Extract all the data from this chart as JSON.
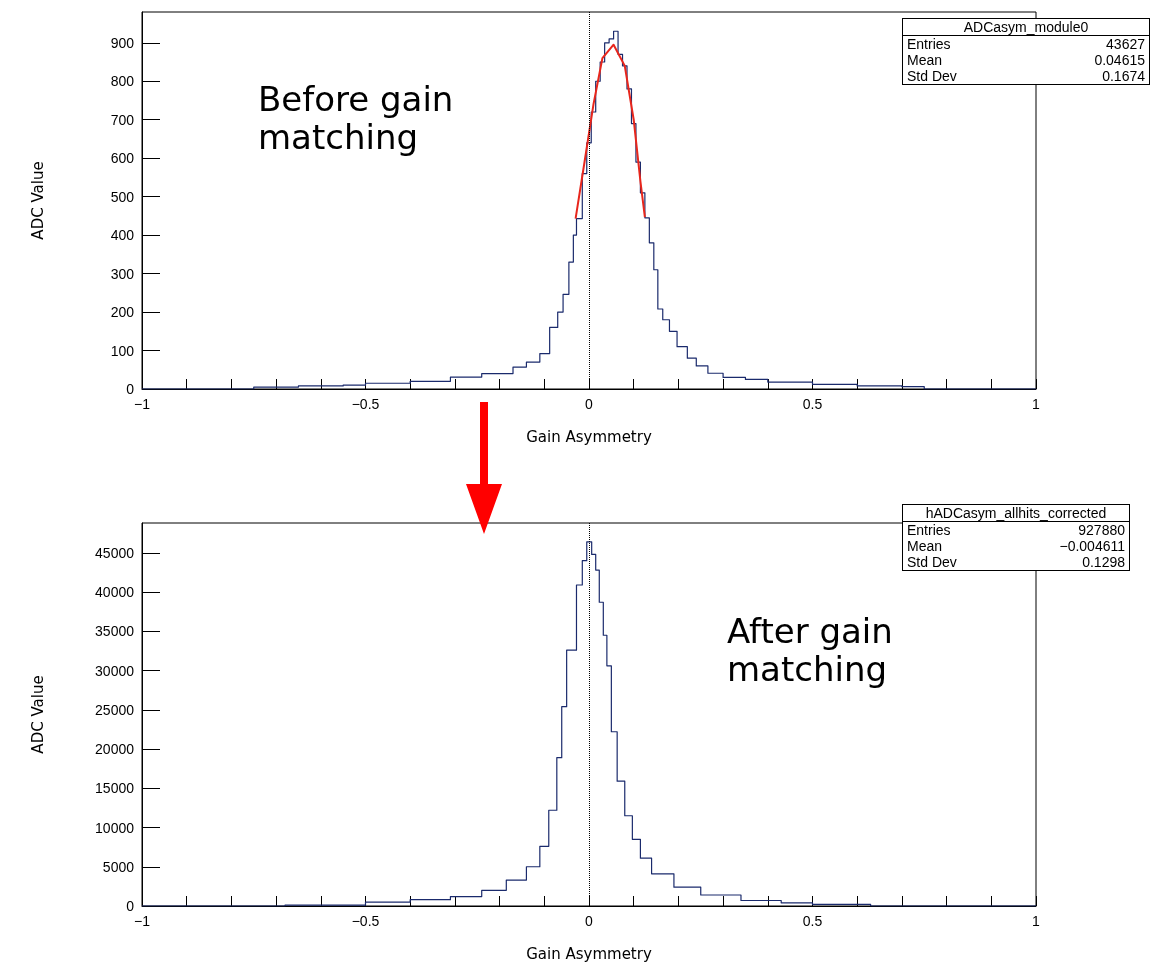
{
  "chart_data": [
    {
      "type": "step",
      "xlabel": "Gain Asymmetry",
      "ylabel": "ADC Value",
      "xlim": [
        -1,
        1
      ],
      "ylim": [
        0,
        980
      ],
      "xticks": [
        {
          "value": -1,
          "label": "−1"
        },
        {
          "value": -0.9,
          "label": null
        },
        {
          "value": -0.8,
          "label": null
        },
        {
          "value": -0.7,
          "label": null
        },
        {
          "value": -0.6,
          "label": null
        },
        {
          "value": -0.5,
          "label": "−0.5"
        },
        {
          "value": -0.4,
          "label": null
        },
        {
          "value": -0.3,
          "label": null
        },
        {
          "value": -0.2,
          "label": null
        },
        {
          "value": -0.1,
          "label": null
        },
        0,
        {
          "value": 0.1,
          "label": null
        },
        {
          "value": 0.2,
          "label": null
        },
        {
          "value": 0.3,
          "label": null
        },
        {
          "value": 0.4,
          "label": null
        },
        0.5,
        {
          "value": 0.6,
          "label": null
        },
        {
          "value": 0.7,
          "label": null
        },
        {
          "value": 0.8,
          "label": null
        },
        {
          "value": 0.9,
          "label": null
        },
        1
      ],
      "yticks": [
        0,
        100,
        200,
        300,
        400,
        500,
        600,
        700,
        800,
        900
      ],
      "grid": false,
      "marker": "none",
      "line_style": "solid",
      "ref_lines": [
        {
          "axis": "x",
          "value": 0,
          "color": "#000000",
          "line_style": "dotted"
        }
      ],
      "annotations": [
        "ADCasym_module0",
        "Entries",
        "43627",
        "Mean",
        "0.04615",
        "Std Dev",
        "0.1674",
        "Before gain matching"
      ],
      "series": [
        {
          "type": "step",
          "color": "#1a2a6c",
          "x": [
            -1,
            -0.75,
            -0.65,
            -0.55,
            -0.5,
            -0.4,
            -0.31,
            -0.24,
            -0.17,
            -0.14,
            -0.11,
            -0.088,
            -0.07,
            -0.058,
            -0.045,
            -0.035,
            -0.028,
            -0.015,
            -0.005,
            0.005,
            0.015,
            0.025,
            0.035,
            0.045,
            0.055,
            0.065,
            0.075,
            0.085,
            0.095,
            0.105,
            0.115,
            0.125,
            0.135,
            0.145,
            0.154,
            0.165,
            0.18,
            0.197,
            0.22,
            0.24,
            0.266,
            0.3,
            0.35,
            0.4,
            0.5,
            0.6,
            0.7,
            0.75,
            1
          ],
          "values": [
            0,
            5,
            8,
            10,
            15,
            20,
            31,
            40,
            57,
            70,
            92,
            160,
            200,
            246,
            330,
            400,
            443,
            560,
            640,
            720,
            800,
            850,
            900,
            910,
            930,
            870,
            840,
            780,
            690,
            590,
            510,
            445,
            380,
            310,
            208,
            180,
            150,
            110,
            80,
            60,
            41,
            30,
            25,
            18,
            12,
            8,
            6,
            0,
            0
          ]
        },
        {
          "type": "line",
          "color": "#e8261c",
          "x": [
            -0.03,
            -0.01,
            0.01,
            0.03,
            0.055,
            0.08,
            0.1,
            0.115,
            0.125
          ],
          "values": [
            443,
            590,
            740,
            860,
            895,
            840,
            700,
            540,
            447
          ]
        }
      ]
    },
    {
      "type": "step",
      "xlabel": "Gain Asymmetry",
      "ylabel": "ADC Value",
      "xlim": [
        -1,
        1
      ],
      "ylim": [
        0,
        48800
      ],
      "xticks": [
        {
          "value": -1,
          "label": "−1"
        },
        {
          "value": -0.9,
          "label": null
        },
        {
          "value": -0.8,
          "label": null
        },
        {
          "value": -0.7,
          "label": null
        },
        {
          "value": -0.6,
          "label": null
        },
        {
          "value": -0.5,
          "label": "−0.5"
        },
        {
          "value": -0.4,
          "label": null
        },
        {
          "value": -0.3,
          "label": null
        },
        {
          "value": -0.2,
          "label": null
        },
        {
          "value": -0.1,
          "label": null
        },
        0,
        {
          "value": 0.1,
          "label": null
        },
        {
          "value": 0.2,
          "label": null
        },
        {
          "value": 0.3,
          "label": null
        },
        {
          "value": 0.4,
          "label": null
        },
        0.5,
        {
          "value": 0.6,
          "label": null
        },
        {
          "value": 0.7,
          "label": null
        },
        {
          "value": 0.8,
          "label": null
        },
        {
          "value": 0.9,
          "label": null
        },
        1
      ],
      "yticks": [
        0,
        5000,
        10000,
        15000,
        20000,
        25000,
        30000,
        35000,
        40000,
        45000
      ],
      "grid": false,
      "marker": "none",
      "line_style": "solid",
      "ref_lines": [
        {
          "axis": "x",
          "value": 0,
          "color": "#000000",
          "line_style": "dotted"
        }
      ],
      "annotations": [
        "hADCasym_allhits_corrected",
        "Entries",
        "927880",
        "Mean",
        "−0.004611",
        "Std Dev",
        "0.1298",
        "After gain matching"
      ],
      "series": [
        {
          "type": "step",
          "color": "#1a2a6c",
          "x": [
            -1,
            -0.68,
            -0.51,
            -0.5,
            -0.4,
            -0.31,
            -0.24,
            -0.185,
            -0.14,
            -0.11,
            -0.09,
            -0.072,
            -0.061,
            -0.05,
            -0.028,
            -0.015,
            -0.005,
            0.006,
            0.015,
            0.023,
            0.032,
            0.04,
            0.05,
            0.063,
            0.08,
            0.097,
            0.115,
            0.14,
            0.19,
            0.25,
            0.34,
            0.43,
            0.5,
            0.63,
            1
          ],
          "values": [
            0,
            100,
            100,
            500,
            800,
            1200,
            2000,
            3300,
            5000,
            7600,
            12200,
            18900,
            25400,
            32600,
            40900,
            44000,
            46400,
            44800,
            42800,
            38700,
            34500,
            30600,
            22200,
            15900,
            11500,
            8500,
            6100,
            4100,
            2400,
            1400,
            700,
            400,
            200,
            0,
            0
          ]
        }
      ]
    }
  ]
}
